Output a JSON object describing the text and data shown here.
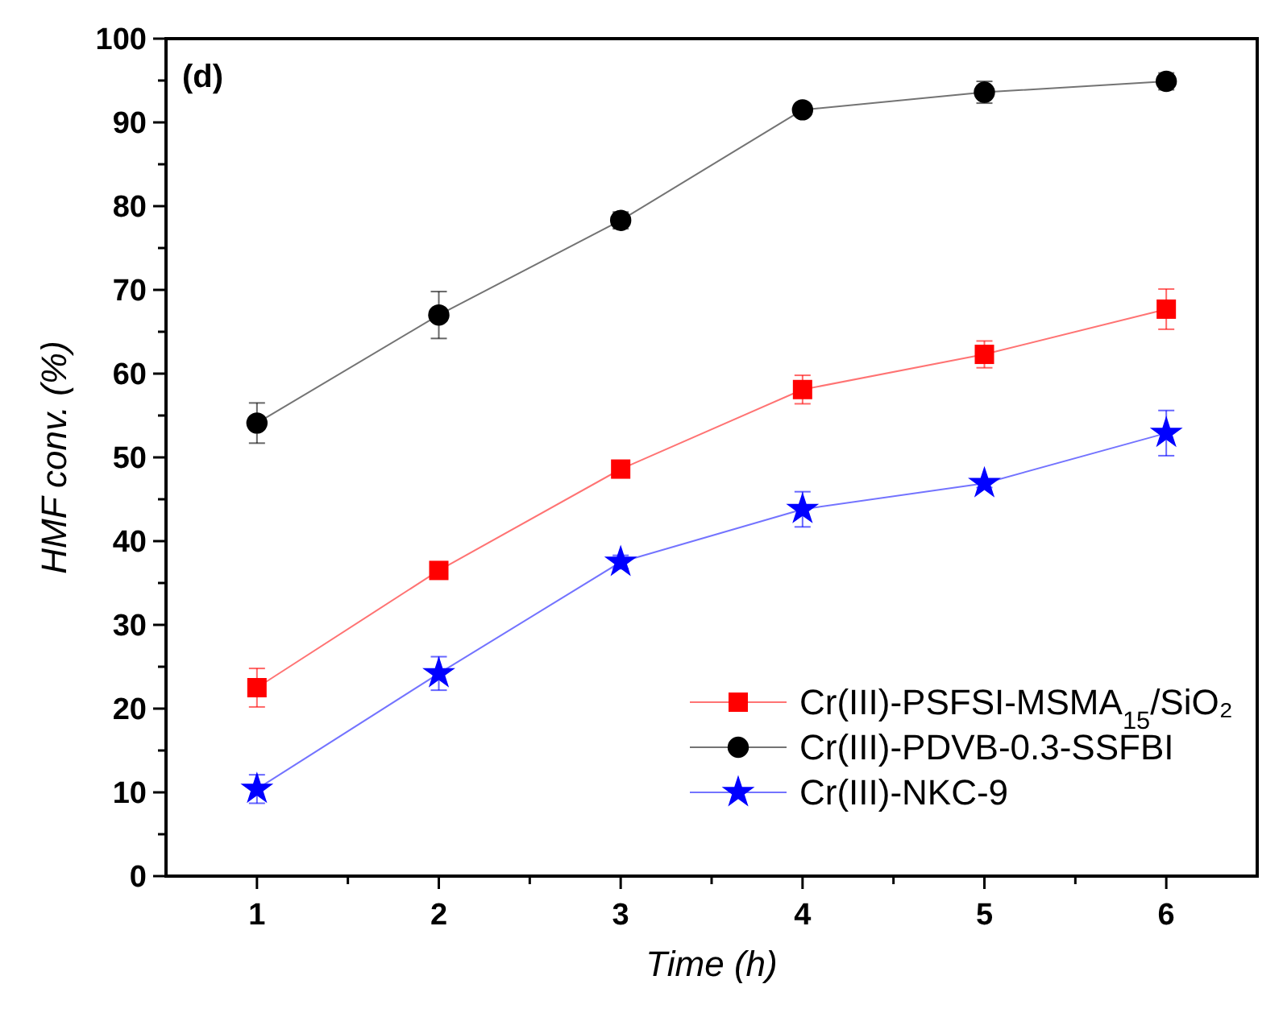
{
  "chart_data": {
    "type": "line",
    "xlabel": "Time (h)",
    "ylabel": "HMF conv. (%)",
    "annotations": [
      "(d)"
    ],
    "x": [
      1,
      2,
      3,
      4,
      5,
      6
    ],
    "series": [
      {
        "name": "Cr(III)-PSFSI-MSMA$_{15}$/SiO₂",
        "color": "#ff0000",
        "marker": "square",
        "values": [
          22.5,
          36.5,
          48.6,
          58.1,
          62.3,
          67.7
        ],
        "errors": [
          2.3,
          0.5,
          0.5,
          1.7,
          1.6,
          2.4
        ]
      },
      {
        "name": "Cr(III)-PDVB-0.3-SSFBI",
        "color": "#000000",
        "marker": "circle",
        "values": [
          54.1,
          67.0,
          78.3,
          91.5,
          93.6,
          94.9
        ],
        "errors": [
          2.4,
          2.8,
          1.0,
          0.5,
          1.3,
          1.0
        ]
      },
      {
        "name": "Cr(III)-NKC-9",
        "color": "#0000ff",
        "marker": "star",
        "values": [
          10.4,
          24.2,
          37.5,
          43.8,
          46.9,
          52.9
        ],
        "errors": [
          1.7,
          2.0,
          0.8,
          2.1,
          0.5,
          2.7
        ]
      }
    ],
    "xlim": [
      0.5,
      6.5
    ],
    "ylim": [
      0,
      100
    ],
    "xticks": [
      1,
      {
        "value": 1.5,
        "label": null
      },
      2,
      {
        "value": 2.5,
        "label": null
      },
      3,
      {
        "value": 3.5,
        "label": null
      },
      4,
      {
        "value": 4.5,
        "label": null
      },
      5,
      {
        "value": 5.5,
        "label": null
      },
      6
    ],
    "yticks": [
      0,
      {
        "value": 5,
        "label": null
      },
      10,
      {
        "value": 15,
        "label": null
      },
      20,
      {
        "value": 25,
        "label": null
      },
      30,
      {
        "value": 35,
        "label": null
      },
      40,
      {
        "value": 45,
        "label": null
      },
      50,
      {
        "value": 55,
        "label": null
      },
      60,
      {
        "value": 65,
        "label": null
      },
      70,
      {
        "value": 75,
        "label": null
      },
      80,
      {
        "value": 85,
        "label": null
      },
      90,
      {
        "value": 95,
        "label": null
      },
      100
    ],
    "legend": "bottom right",
    "grid": false,
    "line_style": "solid"
  }
}
